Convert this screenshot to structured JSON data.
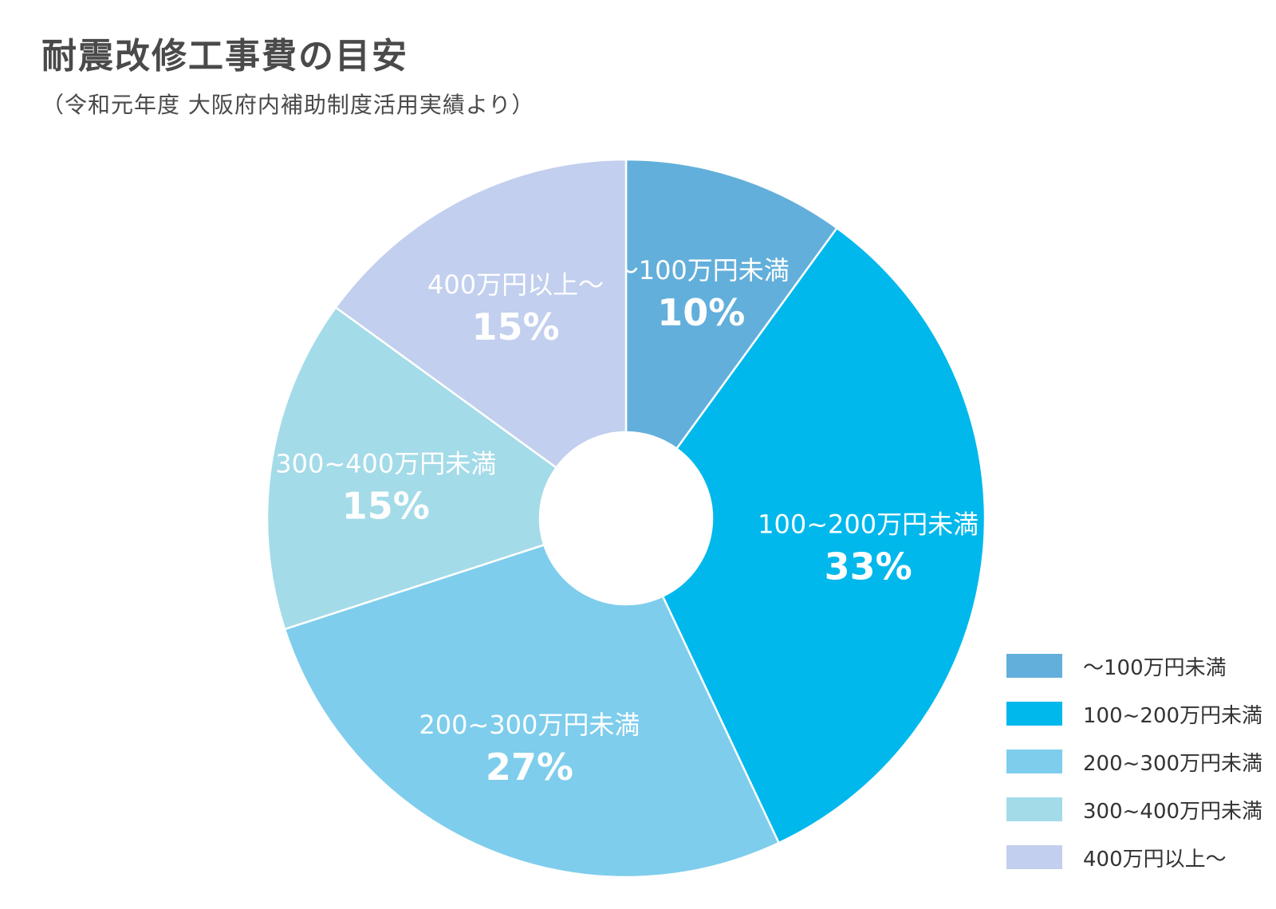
{
  "chart_data": {
    "type": "pie",
    "title": "耐震改修工事費の目安",
    "subtitle": "（令和元年度 大阪府内補助制度活用実績より）",
    "unit": "%",
    "categories": [
      "～100万円未満",
      "100~200万円未満",
      "200~300万円未満",
      "300~400万円未満",
      "400万円以上～"
    ],
    "values": [
      10,
      33,
      27,
      15,
      15
    ],
    "value_labels": [
      "10%",
      "33%",
      "27%",
      "15%",
      "15%"
    ],
    "colors": [
      "#63afdb",
      "#00b8ec",
      "#7ecdec",
      "#a4dbe8",
      "#c2cfee"
    ],
    "legend_position": "bottom-right",
    "donut": true
  }
}
